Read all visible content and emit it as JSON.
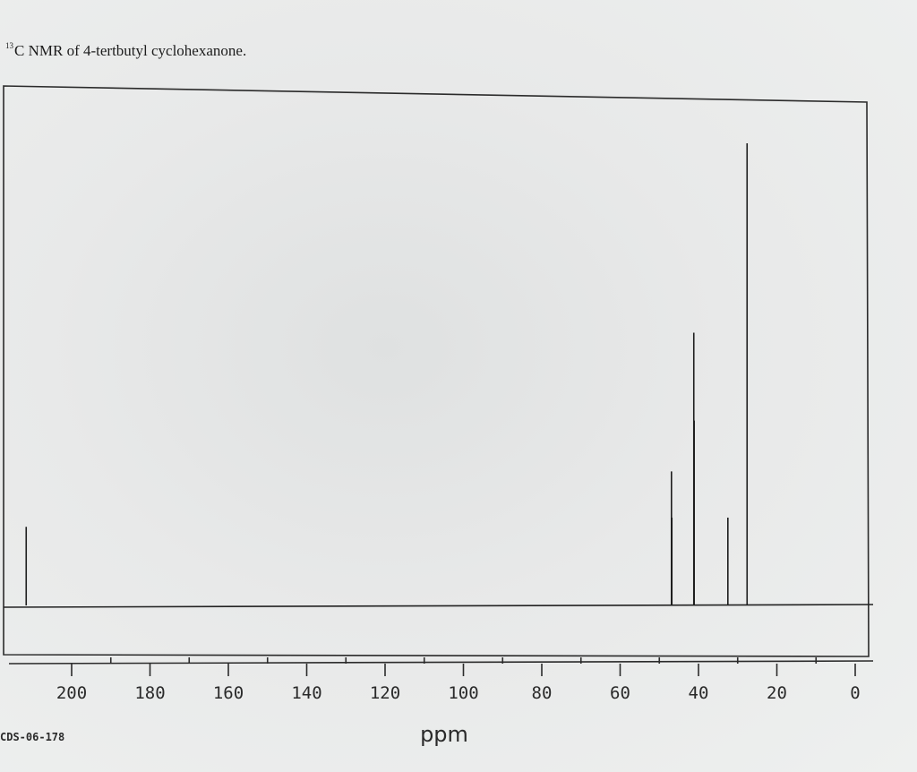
{
  "caption": {
    "superscript": "13",
    "text": "C NMR of 4-tertbutyl cyclohexanone."
  },
  "footer": {
    "code": "CDS-06-178"
  },
  "chart_data": {
    "type": "line",
    "title": "",
    "xlabel": "ppm",
    "ylabel": "",
    "xlim": [
      210,
      0
    ],
    "ylim": [
      0,
      1
    ],
    "x_reversed": true,
    "grid": false,
    "x_ticks": [
      200,
      180,
      160,
      140,
      120,
      100,
      80,
      60,
      40,
      20,
      0
    ],
    "x_tick_labels": [
      "200",
      "180",
      "160",
      "140",
      "120",
      "100",
      "80",
      "60",
      "40",
      "20",
      "0"
    ],
    "peaks": [
      {
        "ppm": 211.6,
        "intensity": 0.17
      },
      {
        "ppm": 46.9,
        "intensity": 0.29
      },
      {
        "ppm": 46.8,
        "intensity": 0.19
      },
      {
        "ppm": 41.2,
        "intensity": 0.59
      },
      {
        "ppm": 41.1,
        "intensity": 0.4
      },
      {
        "ppm": 32.5,
        "intensity": 0.19
      },
      {
        "ppm": 27.6,
        "intensity": 1.0
      }
    ]
  }
}
